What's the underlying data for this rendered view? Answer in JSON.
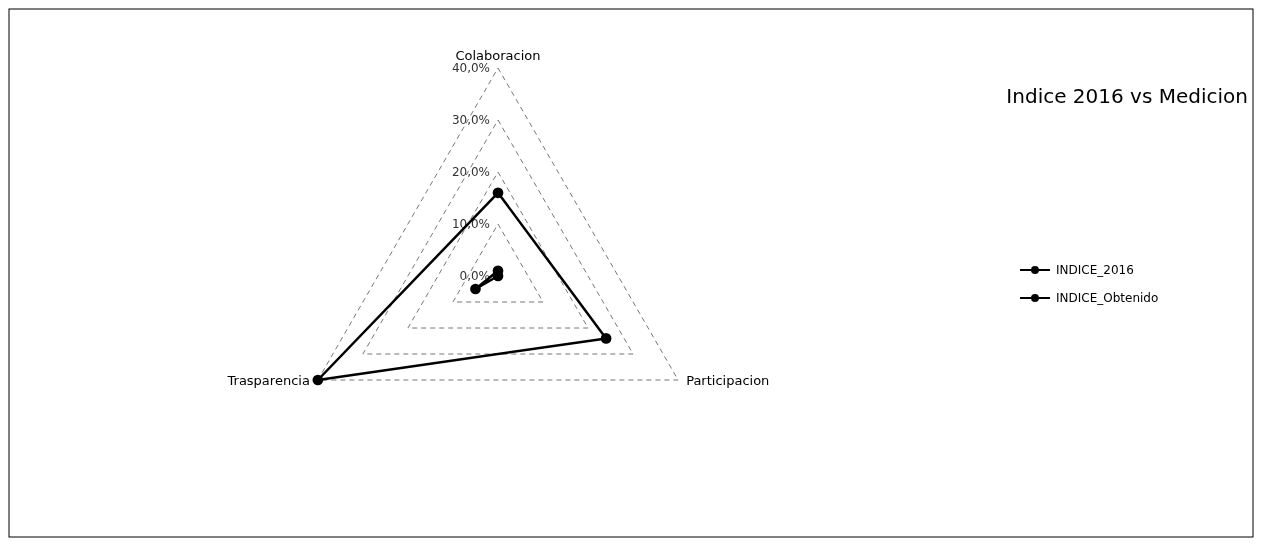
{
  "chart_data": {
    "type": "radar",
    "title": "Indice 2016 vs Medicion",
    "categories": [
      "Colaboracion",
      "Participacion",
      "Trasparencia"
    ],
    "series": [
      {
        "name": "INDICE_2016",
        "color": "#000000",
        "values": [
          16,
          24,
          40
        ]
      },
      {
        "name": "INDICE_Obtenido",
        "color": "#000000",
        "values": [
          1,
          0,
          5
        ]
      }
    ],
    "ylim": [
      0,
      40
    ],
    "yticks": [
      {
        "value": 0,
        "label": "0,0%"
      },
      {
        "value": 10,
        "label": "10,0%"
      },
      {
        "value": 20,
        "label": "20,0%"
      },
      {
        "value": 30,
        "label": "30,0%"
      },
      {
        "value": 40,
        "label": "40,0%"
      }
    ],
    "grid": true,
    "legend": "right",
    "marker": "circle",
    "line_style": "solid"
  }
}
